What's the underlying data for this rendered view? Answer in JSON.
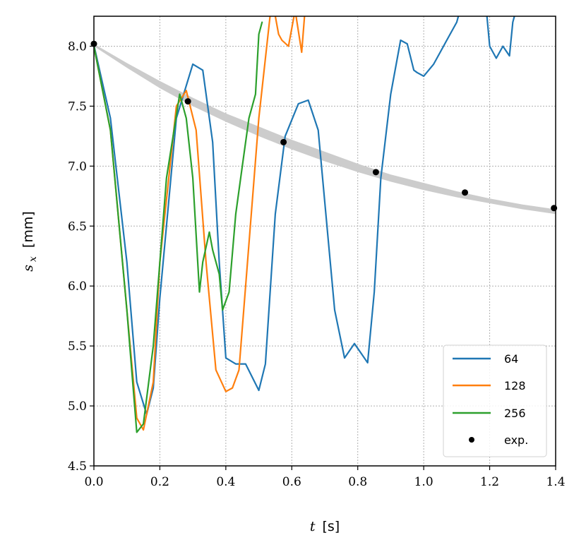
{
  "chart_data": {
    "type": "line",
    "title": "",
    "xlabel": {
      "symbol": "t",
      "unit": "[s]"
    },
    "ylabel": {
      "symbol": "s",
      "subscript": "x",
      "unit": "[mm]"
    },
    "xlim": [
      0.0,
      1.4
    ],
    "ylim": [
      4.5,
      8.25
    ],
    "xticks": [
      "0.0",
      "0.2",
      "0.4",
      "0.6",
      "0.8",
      "1.0",
      "1.2",
      "1.4"
    ],
    "yticks": [
      "4.5",
      "5.0",
      "5.5",
      "6.0",
      "6.5",
      "7.0",
      "7.5",
      "8.0"
    ],
    "grid": true,
    "legend_position": "bottom-right",
    "band": {
      "color": "#cccccc",
      "x": [
        0.0,
        0.1,
        0.2,
        0.3,
        0.4,
        0.5,
        0.6,
        0.7,
        0.8,
        0.9,
        1.0,
        1.1,
        1.2,
        1.3,
        1.4
      ],
      "upper": [
        8.02,
        7.86,
        7.71,
        7.57,
        7.44,
        7.33,
        7.22,
        7.12,
        7.02,
        6.93,
        6.86,
        6.79,
        6.73,
        6.68,
        6.64
      ],
      "lower": [
        8.0,
        7.82,
        7.65,
        7.5,
        7.37,
        7.25,
        7.14,
        7.04,
        6.95,
        6.87,
        6.8,
        6.74,
        6.69,
        6.64,
        6.6
      ]
    },
    "series": [
      {
        "name": "64",
        "color": "#1f77b4",
        "x": [
          0.0,
          0.05,
          0.1,
          0.13,
          0.16,
          0.18,
          0.2,
          0.25,
          0.3,
          0.33,
          0.36,
          0.38,
          0.4,
          0.43,
          0.46,
          0.5,
          0.52,
          0.55,
          0.58,
          0.62,
          0.65,
          0.68,
          0.7,
          0.73,
          0.76,
          0.79,
          0.83,
          0.85,
          0.87,
          0.9,
          0.93,
          0.95,
          0.97,
          0.98,
          1.0,
          1.03,
          1.05,
          1.07,
          1.1,
          1.12,
          1.15,
          1.17,
          1.19,
          1.2,
          1.22,
          1.24,
          1.26,
          1.27,
          1.28
        ],
        "y": [
          8.01,
          7.4,
          6.2,
          5.2,
          4.93,
          5.15,
          5.9,
          7.4,
          7.85,
          7.8,
          7.2,
          6.2,
          5.4,
          5.35,
          5.35,
          5.13,
          5.35,
          6.6,
          7.25,
          7.52,
          7.55,
          7.3,
          6.7,
          5.8,
          5.4,
          5.52,
          5.36,
          5.95,
          6.9,
          7.6,
          8.05,
          8.02,
          7.8,
          7.78,
          7.75,
          7.85,
          7.95,
          8.05,
          8.2,
          8.4,
          8.5,
          8.45,
          8.3,
          8.0,
          7.9,
          8.0,
          7.92,
          8.2,
          8.3
        ]
      },
      {
        "name": "128",
        "color": "#ff7f0e",
        "x": [
          0.0,
          0.05,
          0.1,
          0.13,
          0.15,
          0.18,
          0.2,
          0.25,
          0.28,
          0.31,
          0.34,
          0.37,
          0.4,
          0.42,
          0.44,
          0.46,
          0.5,
          0.54,
          0.56,
          0.57,
          0.59,
          0.61,
          0.63,
          0.64
        ],
        "y": [
          8.0,
          7.3,
          5.8,
          4.9,
          4.8,
          5.2,
          6.2,
          7.5,
          7.63,
          7.3,
          6.2,
          5.3,
          5.12,
          5.15,
          5.3,
          6.0,
          7.4,
          8.4,
          8.1,
          8.05,
          8.0,
          8.3,
          7.95,
          8.3
        ]
      },
      {
        "name": "256",
        "color": "#2ca02c",
        "x": [
          0.0,
          0.05,
          0.1,
          0.13,
          0.15,
          0.18,
          0.22,
          0.26,
          0.28,
          0.3,
          0.32,
          0.33,
          0.35,
          0.36,
          0.38,
          0.39,
          0.41,
          0.43,
          0.45,
          0.47,
          0.49,
          0.5,
          0.51
        ],
        "y": [
          8.0,
          7.3,
          5.8,
          4.78,
          4.85,
          5.5,
          6.9,
          7.6,
          7.4,
          6.9,
          5.95,
          6.2,
          6.45,
          6.3,
          6.1,
          5.8,
          5.95,
          6.6,
          7.0,
          7.4,
          7.6,
          8.1,
          8.2
        ]
      }
    ],
    "points": {
      "name": "exp.",
      "color": "#000000",
      "x": [
        0.0,
        0.285,
        0.575,
        0.855,
        1.125,
        1.395
      ],
      "y": [
        8.02,
        7.54,
        7.2,
        6.95,
        6.78,
        6.65
      ]
    }
  }
}
